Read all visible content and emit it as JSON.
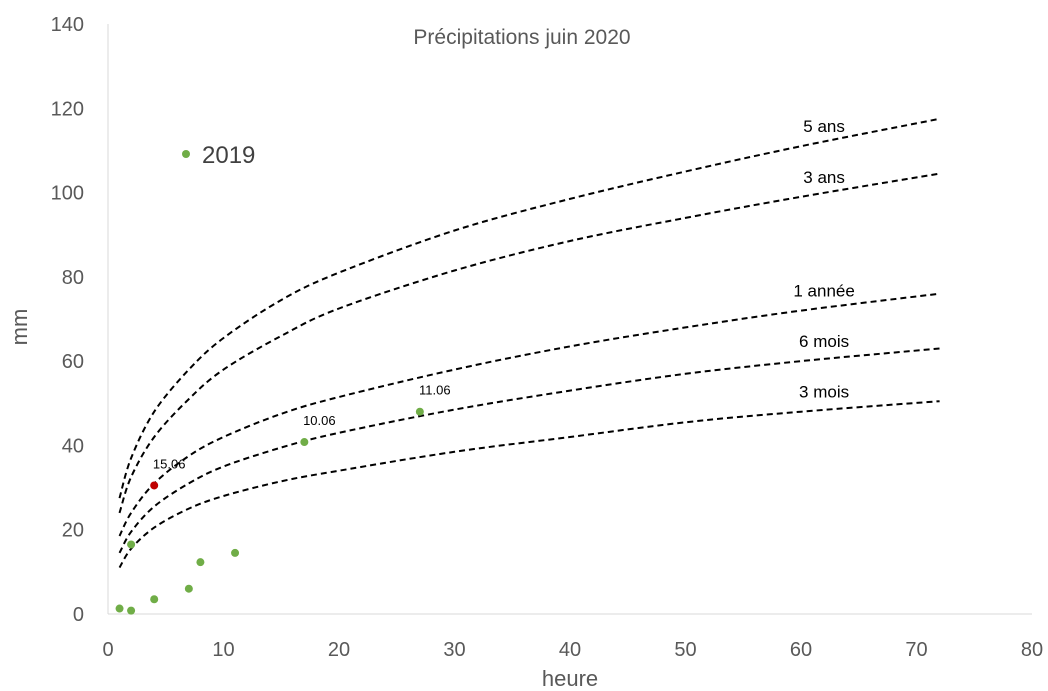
{
  "chart_data": {
    "type": "scatter",
    "title": "Précipitations juin 2020",
    "xlabel": "heure",
    "ylabel": "mm",
    "xlim": [
      0,
      80
    ],
    "ylim": [
      0,
      140
    ],
    "xticks": [
      "0",
      "10",
      "20",
      "30",
      "40",
      "50",
      "60",
      "70",
      "80"
    ],
    "yticks": [
      "0",
      "20",
      "40",
      "60",
      "80",
      "100",
      "120",
      "140"
    ],
    "grid": false,
    "curves": [
      {
        "name": "5 ans",
        "style": "dashed",
        "x": [
          1,
          2,
          4,
          7,
          10,
          15,
          20,
          30,
          40,
          50,
          60,
          72
        ],
        "y": [
          27.5,
          37,
          48,
          58,
          65.5,
          74.5,
          81,
          91,
          98.5,
          105,
          111,
          117.5
        ]
      },
      {
        "name": "3 ans",
        "style": "dashed",
        "x": [
          1,
          2,
          4,
          7,
          10,
          15,
          20,
          30,
          40,
          50,
          60,
          72
        ],
        "y": [
          24,
          32.5,
          42,
          51,
          58,
          66,
          72.5,
          81.5,
          88.5,
          94,
          99,
          104.5
        ]
      },
      {
        "name": "1 année",
        "style": "dashed",
        "x": [
          1,
          2,
          4,
          7,
          10,
          15,
          20,
          30,
          40,
          50,
          60,
          72
        ],
        "y": [
          18.5,
          24,
          31,
          37.5,
          42,
          47.5,
          51.5,
          58,
          63.5,
          68,
          72,
          76
        ]
      },
      {
        "name": "6 mois",
        "style": "dashed",
        "x": [
          1,
          2,
          4,
          7,
          10,
          15,
          20,
          30,
          40,
          50,
          60,
          72
        ],
        "y": [
          14.5,
          19.5,
          25.5,
          31,
          35,
          39.5,
          43,
          48.5,
          53,
          57,
          60,
          63
        ]
      },
      {
        "name": "3 mois",
        "style": "dashed",
        "x": [
          1,
          2,
          4,
          7,
          10,
          15,
          20,
          30,
          40,
          50,
          60,
          72
        ],
        "y": [
          11,
          15.5,
          20.5,
          25,
          28,
          31.5,
          34,
          38.5,
          42,
          45.5,
          48,
          50.5
        ]
      }
    ],
    "points": [
      {
        "x": 1,
        "y": 1.3,
        "color": "#70ad47",
        "label": ""
      },
      {
        "x": 2,
        "y": 0.8,
        "color": "#70ad47",
        "label": ""
      },
      {
        "x": 2,
        "y": 16.5,
        "color": "#70ad47",
        "label": ""
      },
      {
        "x": 4,
        "y": 3.5,
        "color": "#70ad47",
        "label": ""
      },
      {
        "x": 4,
        "y": 30.5,
        "color": "#c00000",
        "label": "15.06"
      },
      {
        "x": 7,
        "y": 6,
        "color": "#70ad47",
        "label": ""
      },
      {
        "x": 8,
        "y": 12.3,
        "color": "#70ad47",
        "label": ""
      },
      {
        "x": 11,
        "y": 14.5,
        "color": "#70ad47",
        "label": ""
      },
      {
        "x": 17,
        "y": 40.8,
        "color": "#70ad47",
        "label": "10.06"
      },
      {
        "x": 27,
        "y": 48,
        "color": "#70ad47",
        "label": "11.06"
      }
    ],
    "legend": {
      "label": "2019",
      "color": "#70ad47",
      "placement": "top-left"
    }
  }
}
